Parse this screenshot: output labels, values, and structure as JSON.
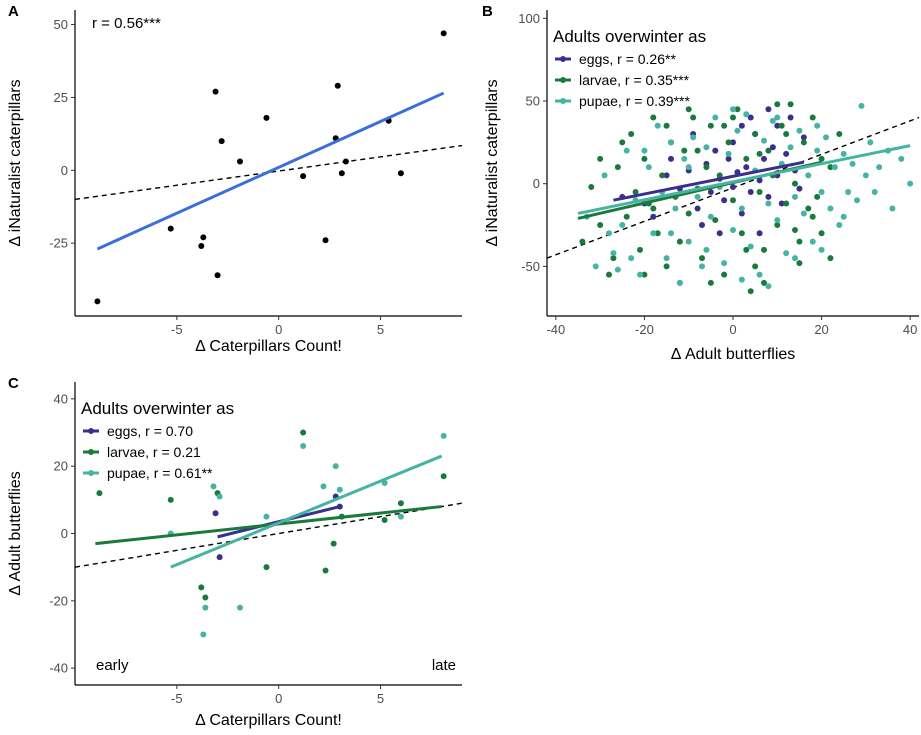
{
  "colors": {
    "eggs": "#3a2f8c",
    "larvae": "#1a7a3c",
    "pupae": "#46b3a3",
    "overall": "#3a6fdb",
    "reference": "#000000"
  },
  "chart_data": [
    {
      "panel": "A",
      "type": "scatter",
      "xlabel": "Δ Caterpillars Count!",
      "ylabel": "Δ iNaturalist caterpillars",
      "xlim": [
        -10,
        9
      ],
      "ylim": [
        -50,
        55
      ],
      "xticks": [
        -5,
        0,
        5
      ],
      "yticks": [
        -25,
        0,
        25,
        50
      ],
      "annotation": "r = 0.56***",
      "grid": false,
      "points": [
        [
          -8.9,
          -45
        ],
        [
          -5.3,
          -20
        ],
        [
          -3.8,
          -26
        ],
        [
          -3.7,
          -23
        ],
        [
          -3.0,
          -36
        ],
        [
          -3.1,
          27
        ],
        [
          -2.8,
          10
        ],
        [
          -1.9,
          3
        ],
        [
          -0.6,
          18
        ],
        [
          1.2,
          -2
        ],
        [
          2.3,
          -24
        ],
        [
          2.8,
          11
        ],
        [
          2.9,
          29
        ],
        [
          3.1,
          -1
        ],
        [
          3.3,
          3
        ],
        [
          5.4,
          17
        ],
        [
          6.0,
          -1
        ],
        [
          8.1,
          47
        ]
      ],
      "fit_line": [
        [
          -8.9,
          -27
        ],
        [
          8.1,
          26.5
        ]
      ],
      "reference_line": [
        [
          -10,
          -10
        ],
        [
          9,
          8.5
        ]
      ]
    },
    {
      "panel": "B",
      "type": "scatter",
      "xlabel": "Δ Adult butterflies",
      "ylabel": "Δ iNaturalist caterpillars",
      "xlim": [
        -42,
        42
      ],
      "ylim": [
        -80,
        105
      ],
      "xticks": [
        -40,
        -20,
        0,
        20,
        40
      ],
      "yticks": [
        -50,
        0,
        50,
        100
      ],
      "legend_title": "Adults overwinter as",
      "legend_position": "top-left",
      "grid": false,
      "series": [
        {
          "name": "eggs, r = 0.26**",
          "color_key": "eggs",
          "fit_line": [
            [
              -27,
              -10
            ],
            [
              16,
              13
            ]
          ],
          "points": [
            [
              -25,
              -8
            ],
            [
              -20,
              -12
            ],
            [
              -15,
              5
            ],
            [
              -12,
              -3
            ],
            [
              -10,
              8
            ],
            [
              -8,
              -15
            ],
            [
              -6,
              12
            ],
            [
              -5,
              -5
            ],
            [
              -4,
              20
            ],
            [
              -3,
              3
            ],
            [
              -2,
              -10
            ],
            [
              -1,
              15
            ],
            [
              0,
              -2
            ],
            [
              0,
              25
            ],
            [
              1,
              7
            ],
            [
              2,
              -18
            ],
            [
              3,
              10
            ],
            [
              4,
              -5
            ],
            [
              5,
              30
            ],
            [
              6,
              2
            ],
            [
              7,
              15
            ],
            [
              8,
              -8
            ],
            [
              9,
              22
            ],
            [
              10,
              5
            ],
            [
              11,
              -12
            ],
            [
              12,
              18
            ],
            [
              13,
              40
            ],
            [
              14,
              8
            ],
            [
              15,
              -3
            ],
            [
              16,
              28
            ],
            [
              -18,
              -20
            ],
            [
              -9,
              30
            ],
            [
              -7,
              -25
            ],
            [
              2,
              35
            ],
            [
              6,
              -30
            ],
            [
              10,
              35
            ],
            [
              -14,
              15
            ],
            [
              -3,
              -30
            ],
            [
              4,
              40
            ],
            [
              8,
              45
            ]
          ]
        },
        {
          "name": "larvae, r = 0.35***",
          "color_key": "larvae",
          "fit_line": [
            [
              -35,
              -21
            ],
            [
              20,
              13
            ]
          ],
          "points": [
            [
              -34,
              -35
            ],
            [
              -32,
              -2
            ],
            [
              -30,
              -25
            ],
            [
              -28,
              -55
            ],
            [
              -26,
              10
            ],
            [
              -24,
              -20
            ],
            [
              -23,
              30
            ],
            [
              -22,
              -5
            ],
            [
              -21,
              -40
            ],
            [
              -20,
              15
            ],
            [
              -19,
              -12
            ],
            [
              -18,
              40
            ],
            [
              -17,
              -30
            ],
            [
              -16,
              5
            ],
            [
              -15,
              -50
            ],
            [
              -14,
              25
            ],
            [
              -13,
              -8
            ],
            [
              -12,
              -60
            ],
            [
              -11,
              20
            ],
            [
              -10,
              -18
            ],
            [
              -9,
              40
            ],
            [
              -8,
              -3
            ],
            [
              -7,
              -45
            ],
            [
              -6,
              10
            ],
            [
              -5,
              35
            ],
            [
              -4,
              -22
            ],
            [
              -3,
              5
            ],
            [
              -2,
              -55
            ],
            [
              -1,
              25
            ],
            [
              0,
              -10
            ],
            [
              1,
              45
            ],
            [
              2,
              -30
            ],
            [
              3,
              15
            ],
            [
              4,
              -65
            ],
            [
              5,
              30
            ],
            [
              6,
              -5
            ],
            [
              7,
              -40
            ],
            [
              8,
              20
            ],
            [
              9,
              5
            ],
            [
              10,
              -25
            ],
            [
              11,
              35
            ],
            [
              12,
              -12
            ],
            [
              13,
              48
            ],
            [
              14,
              0
            ],
            [
              15,
              -35
            ],
            [
              16,
              25
            ],
            [
              17,
              -15
            ],
            [
              18,
              40
            ],
            [
              19,
              -8
            ],
            [
              20,
              15
            ],
            [
              22,
              -45
            ],
            [
              24,
              30
            ],
            [
              -27,
              -45
            ],
            [
              -20,
              -55
            ],
            [
              -10,
              45
            ],
            [
              -5,
              -60
            ],
            [
              0,
              40
            ],
            [
              5,
              -50
            ],
            [
              10,
              48
            ],
            [
              15,
              -48
            ],
            [
              20,
              -30
            ],
            [
              -15,
              35
            ],
            [
              -25,
              25
            ],
            [
              -30,
              15
            ],
            [
              7,
              -60
            ],
            [
              12,
              30
            ],
            [
              18,
              -20
            ],
            [
              3,
              -40
            ],
            [
              -8,
              20
            ],
            [
              -2,
              35
            ],
            [
              6,
              18
            ],
            [
              -12,
              -35
            ],
            [
              -18,
              -15
            ],
            [
              14,
              -28
            ],
            [
              22,
              10
            ]
          ]
        },
        {
          "name": "pupae, r = 0.39***",
          "color_key": "pupae",
          "fit_line": [
            [
              -35,
              -18
            ],
            [
              40,
              23
            ]
          ],
          "points": [
            [
              -33,
              -20
            ],
            [
              -31,
              -50
            ],
            [
              -29,
              5
            ],
            [
              -27,
              -42
            ],
            [
              -25,
              -25
            ],
            [
              -24,
              20
            ],
            [
              -22,
              -10
            ],
            [
              -21,
              -55
            ],
            [
              -19,
              10
            ],
            [
              -18,
              -30
            ],
            [
              -17,
              35
            ],
            [
              -16,
              -5
            ],
            [
              -15,
              -45
            ],
            [
              -14,
              25
            ],
            [
              -13,
              -15
            ],
            [
              -12,
              -60
            ],
            [
              -11,
              15
            ],
            [
              -10,
              -35
            ],
            [
              -9,
              28
            ],
            [
              -8,
              -8
            ],
            [
              -7,
              -50
            ],
            [
              -6,
              22
            ],
            [
              -5,
              -20
            ],
            [
              -4,
              40
            ],
            [
              -3,
              -2
            ],
            [
              -2,
              -48
            ],
            [
              -1,
              18
            ],
            [
              0,
              -28
            ],
            [
              1,
              32
            ],
            [
              2,
              -15
            ],
            [
              3,
              42
            ],
            [
              4,
              -38
            ],
            [
              5,
              8
            ],
            [
              6,
              -55
            ],
            [
              7,
              26
            ],
            [
              8,
              -12
            ],
            [
              9,
              38
            ],
            [
              10,
              -22
            ],
            [
              11,
              12
            ],
            [
              12,
              -42
            ],
            [
              13,
              22
            ],
            [
              14,
              -8
            ],
            [
              15,
              32
            ],
            [
              16,
              -18
            ],
            [
              17,
              5
            ],
            [
              18,
              -35
            ],
            [
              19,
              20
            ],
            [
              20,
              -5
            ],
            [
              21,
              28
            ],
            [
              22,
              -15
            ],
            [
              23,
              10
            ],
            [
              24,
              -25
            ],
            [
              25,
              18
            ],
            [
              26,
              -5
            ],
            [
              27,
              12
            ],
            [
              28,
              -10
            ],
            [
              29,
              47
            ],
            [
              30,
              5
            ],
            [
              31,
              25
            ],
            [
              32,
              -5
            ],
            [
              35,
              20
            ],
            [
              38,
              15
            ],
            [
              40,
              0
            ],
            [
              36,
              -15
            ],
            [
              33,
              10
            ],
            [
              -26,
              -52
            ],
            [
              -23,
              -45
            ],
            [
              -20,
              20
            ],
            [
              -14,
              -30
            ],
            [
              -6,
              -40
            ],
            [
              2,
              -58
            ],
            [
              8,
              -62
            ],
            [
              14,
              -45
            ],
            [
              20,
              -40
            ],
            [
              25,
              -20
            ],
            [
              -28,
              -30
            ],
            [
              -10,
              10
            ],
            [
              0,
              45
            ],
            [
              10,
              40
            ],
            [
              19,
              35
            ]
          ]
        }
      ],
      "reference_line": [
        [
          -42,
          -45
        ],
        [
          42,
          40
        ]
      ]
    },
    {
      "panel": "C",
      "type": "scatter",
      "xlabel": "Δ Caterpillars Count!",
      "ylabel": "Δ Adult butterflies",
      "xlim": [
        -10,
        9
      ],
      "ylim": [
        -45,
        45
      ],
      "xticks": [
        -5,
        0,
        5
      ],
      "yticks": [
        -40,
        -20,
        0,
        20,
        40
      ],
      "legend_title": "Adults overwinter as",
      "legend_position": "top-left",
      "corner_labels": {
        "left": "early",
        "right": "late"
      },
      "grid": false,
      "series": [
        {
          "name": "eggs, r = 0.70",
          "color_key": "eggs",
          "fit_line": [
            [
              -3,
              -1
            ],
            [
              3,
              8
            ]
          ],
          "points": [
            [
              -3.1,
              6
            ],
            [
              -2.9,
              -7
            ],
            [
              2.8,
              11
            ],
            [
              3.0,
              8
            ]
          ]
        },
        {
          "name": "larvae, r = 0.21",
          "color_key": "larvae",
          "fit_line": [
            [
              -9,
              -3
            ],
            [
              8,
              8
            ]
          ],
          "points": [
            [
              -8.8,
              12
            ],
            [
              -5.3,
              10
            ],
            [
              -3.8,
              -16
            ],
            [
              -3.6,
              -19
            ],
            [
              -3.0,
              12
            ],
            [
              -0.6,
              -10
            ],
            [
              1.2,
              30
            ],
            [
              2.3,
              -11
            ],
            [
              2.7,
              -3
            ],
            [
              3.1,
              5
            ],
            [
              5.2,
              4
            ],
            [
              6.0,
              9
            ],
            [
              8.1,
              17
            ]
          ]
        },
        {
          "name": "pupae, r = 0.61**",
          "color_key": "pupae",
          "fit_line": [
            [
              -5.3,
              -10
            ],
            [
              8,
              23
            ]
          ],
          "points": [
            [
              -5.3,
              0
            ],
            [
              -3.7,
              -30
            ],
            [
              -3.6,
              -22
            ],
            [
              -3.2,
              14
            ],
            [
              -2.9,
              11
            ],
            [
              -1.9,
              -22
            ],
            [
              -0.6,
              5
            ],
            [
              1.2,
              26
            ],
            [
              2.2,
              14
            ],
            [
              2.8,
              20
            ],
            [
              3.0,
              13
            ],
            [
              5.2,
              15
            ],
            [
              6.0,
              5
            ],
            [
              8.1,
              29
            ]
          ]
        }
      ],
      "reference_line": [
        [
          -10,
          -10
        ],
        [
          9,
          9
        ]
      ]
    }
  ]
}
